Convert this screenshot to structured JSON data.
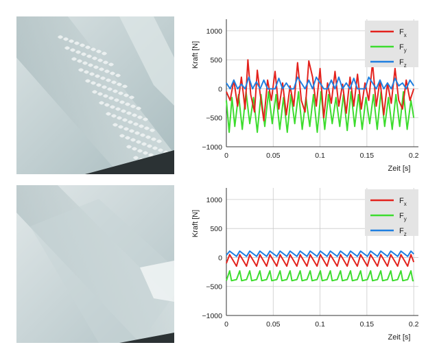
{
  "photos": [
    {
      "alt": "",
      "colors": {
        "bg": "#bccbce",
        "light": "#dfe7e8",
        "dark": "#2b3234",
        "wave": "#eef3f3"
      }
    },
    {
      "alt": "",
      "colors": {
        "bg": "#c3d0d2",
        "light": "#e3e9ea",
        "dark": "#2b3234",
        "wave": "#edf2f2"
      }
    }
  ],
  "legend": [
    {
      "key": "fx",
      "base": "F",
      "sub": "x",
      "color": "#e3211c"
    },
    {
      "key": "fy",
      "base": "F",
      "sub": "y",
      "color": "#3ddc2e"
    },
    {
      "key": "fz",
      "base": "F",
      "sub": "z",
      "color": "#1f7fe0"
    }
  ],
  "chart_data": [
    {
      "type": "line",
      "xlabel": "Zeit [s]",
      "ylabel": "Kraft [N]",
      "xlim": [
        0,
        0.205
      ],
      "ylim": [
        -1000,
        1200
      ],
      "xticks": [
        0,
        0.05,
        0.1,
        0.15,
        0.2
      ],
      "xtick_labels": [
        "0",
        "0.05",
        "0.1",
        "0.15",
        "0.2"
      ],
      "yticks": [
        -1000,
        -500,
        0,
        500,
        1000
      ],
      "ytick_labels": [
        "−1000",
        "−500",
        "0",
        "500",
        "1000"
      ],
      "grid": true,
      "legend_position": "top-right",
      "series": [
        {
          "name": "F_x",
          "color": "#e3211c",
          "x": [
            0,
            0.004,
            0.008,
            0.012,
            0.016,
            0.02,
            0.023,
            0.026,
            0.03,
            0.033,
            0.036,
            0.04,
            0.044,
            0.048,
            0.052,
            0.056,
            0.06,
            0.064,
            0.068,
            0.072,
            0.076,
            0.08,
            0.084,
            0.088,
            0.092,
            0.096,
            0.1,
            0.104,
            0.108,
            0.112,
            0.116,
            0.12,
            0.124,
            0.128,
            0.132,
            0.136,
            0.14,
            0.144,
            0.148,
            0.152,
            0.156,
            0.16,
            0.164,
            0.168,
            0.172,
            0.176,
            0.18,
            0.184,
            0.188,
            0.192,
            0.196,
            0.2
          ],
          "y": [
            -50,
            -200,
            150,
            -300,
            200,
            -350,
            500,
            -100,
            -400,
            320,
            -80,
            -550,
            150,
            -200,
            300,
            -350,
            100,
            -450,
            50,
            -300,
            450,
            -200,
            -400,
            480,
            200,
            -300,
            350,
            -500,
            100,
            -250,
            300,
            -300,
            80,
            -420,
            200,
            -300,
            250,
            -350,
            100,
            -200,
            450,
            -300,
            150,
            -450,
            100,
            -250,
            350,
            -200,
            -350,
            150,
            -200,
            0
          ]
        },
        {
          "name": "F_y",
          "color": "#3ddc2e",
          "x": [
            0,
            0.003,
            0.006,
            0.009,
            0.013,
            0.017,
            0.021,
            0.025,
            0.029,
            0.033,
            0.037,
            0.041,
            0.045,
            0.049,
            0.053,
            0.057,
            0.061,
            0.065,
            0.069,
            0.073,
            0.077,
            0.081,
            0.085,
            0.089,
            0.093,
            0.097,
            0.101,
            0.105,
            0.109,
            0.113,
            0.117,
            0.121,
            0.125,
            0.129,
            0.133,
            0.137,
            0.141,
            0.145,
            0.149,
            0.153,
            0.157,
            0.161,
            0.165,
            0.169,
            0.173,
            0.177,
            0.181,
            0.185,
            0.189,
            0.193,
            0.197,
            0.2
          ],
          "y": [
            -200,
            -750,
            -150,
            -650,
            -100,
            -700,
            -50,
            -600,
            -150,
            -750,
            -100,
            -650,
            -50,
            -600,
            -100,
            -700,
            -150,
            -750,
            -100,
            -600,
            -50,
            -700,
            -150,
            -650,
            -100,
            -750,
            -50,
            -700,
            -100,
            -600,
            -150,
            -650,
            -100,
            -720,
            -50,
            -650,
            -100,
            -700,
            -150,
            -600,
            -100,
            -700,
            -50,
            -650,
            -150,
            -700,
            -100,
            -650,
            -50,
            -700,
            -200,
            -500
          ]
        },
        {
          "name": "F_z",
          "color": "#1f7fe0",
          "x": [
            0,
            0.004,
            0.008,
            0.012,
            0.016,
            0.02,
            0.024,
            0.028,
            0.032,
            0.036,
            0.04,
            0.044,
            0.048,
            0.052,
            0.056,
            0.06,
            0.064,
            0.068,
            0.072,
            0.076,
            0.08,
            0.084,
            0.088,
            0.092,
            0.096,
            0.1,
            0.104,
            0.108,
            0.112,
            0.116,
            0.12,
            0.124,
            0.128,
            0.132,
            0.136,
            0.14,
            0.144,
            0.148,
            0.152,
            0.156,
            0.16,
            0.164,
            0.168,
            0.172,
            0.176,
            0.18,
            0.184,
            0.188,
            0.192,
            0.196,
            0.2
          ],
          "y": [
            100,
            0,
            150,
            0,
            80,
            0,
            200,
            0,
            120,
            0,
            150,
            0,
            0,
            0,
            180,
            0,
            100,
            0,
            0,
            200,
            100,
            0,
            150,
            0,
            200,
            100,
            0,
            0,
            150,
            0,
            200,
            0,
            100,
            0,
            180,
            0,
            0,
            0,
            200,
            100,
            0,
            150,
            0,
            100,
            0,
            180,
            50,
            100,
            0,
            150,
            50
          ]
        }
      ]
    },
    {
      "type": "line",
      "xlabel": "Zeit [s]",
      "ylabel": "Kraft [N]",
      "xlim": [
        0,
        0.205
      ],
      "ylim": [
        -1000,
        1200
      ],
      "xticks": [
        0,
        0.05,
        0.1,
        0.15,
        0.2
      ],
      "xtick_labels": [
        "0",
        "0.05",
        "0.1",
        "0.15",
        "0.2"
      ],
      "yticks": [
        -1000,
        -500,
        0,
        500,
        1000
      ],
      "ytick_labels": [
        "−1000",
        "−500",
        "0",
        "500",
        "1000"
      ],
      "grid": true,
      "legend_position": "top-right",
      "series": [
        {
          "name": "F_x",
          "color": "#e3211c",
          "x": [
            0,
            0.0035,
            0.0108,
            0.0143,
            0.0215,
            0.025,
            0.0323,
            0.0358,
            0.043,
            0.0465,
            0.0538,
            0.0573,
            0.0645,
            0.068,
            0.0753,
            0.0788,
            0.086,
            0.0895,
            0.0968,
            0.1003,
            0.1075,
            0.111,
            0.1183,
            0.1218,
            0.129,
            0.1325,
            0.1398,
            0.1433,
            0.1505,
            0.154,
            0.1613,
            0.1648,
            0.172,
            0.1755,
            0.1828,
            0.1863,
            0.1935,
            0.197,
            0.2
          ],
          "y": [
            -100,
            50,
            -150,
            50,
            -150,
            50,
            -150,
            50,
            -150,
            50,
            -150,
            50,
            -150,
            50,
            -150,
            50,
            -150,
            50,
            -150,
            50,
            -150,
            50,
            -150,
            50,
            -150,
            50,
            -150,
            50,
            -150,
            50,
            -150,
            50,
            -150,
            50,
            -150,
            50,
            -150,
            50,
            -80
          ]
        },
        {
          "name": "F_y",
          "color": "#3ddc2e",
          "x": [
            0,
            0.0035,
            0.0055,
            0.0108,
            0.0143,
            0.0163,
            0.0215,
            0.025,
            0.027,
            0.0323,
            0.0358,
            0.0378,
            0.043,
            0.0465,
            0.0485,
            0.0538,
            0.0573,
            0.0593,
            0.0645,
            0.068,
            0.07,
            0.0753,
            0.0788,
            0.0808,
            0.086,
            0.0895,
            0.0915,
            0.0968,
            0.1003,
            0.1023,
            0.1075,
            0.111,
            0.113,
            0.1183,
            0.1218,
            0.1238,
            0.129,
            0.1325,
            0.1345,
            0.1398,
            0.1433,
            0.1453,
            0.1505,
            0.154,
            0.156,
            0.1613,
            0.1648,
            0.1668,
            0.172,
            0.1755,
            0.1775,
            0.1828,
            0.1863,
            0.1883,
            0.1935,
            0.197,
            0.199,
            0.2
          ],
          "y": [
            -400,
            -230,
            -400,
            -380,
            -230,
            -400,
            -380,
            -230,
            -400,
            -380,
            -230,
            -400,
            -380,
            -230,
            -400,
            -380,
            -230,
            -400,
            -380,
            -230,
            -400,
            -380,
            -230,
            -400,
            -380,
            -230,
            -400,
            -380,
            -230,
            -400,
            -380,
            -230,
            -400,
            -380,
            -230,
            -400,
            -380,
            -230,
            -400,
            -380,
            -230,
            -400,
            -380,
            -230,
            -400,
            -380,
            -230,
            -400,
            -380,
            -230,
            -400,
            -380,
            -230,
            -400,
            -380,
            -230,
            -400,
            -400
          ]
        },
        {
          "name": "F_z",
          "color": "#1f7fe0",
          "x": [
            0,
            0.0035,
            0.0108,
            0.0143,
            0.0215,
            0.025,
            0.0323,
            0.0358,
            0.043,
            0.0465,
            0.0538,
            0.0573,
            0.0645,
            0.068,
            0.0753,
            0.0788,
            0.086,
            0.0895,
            0.0968,
            0.1003,
            0.1075,
            0.111,
            0.1183,
            0.1218,
            0.129,
            0.1325,
            0.1398,
            0.1433,
            0.1505,
            0.154,
            0.1613,
            0.1648,
            0.172,
            0.1755,
            0.1828,
            0.1863,
            0.1935,
            0.197,
            0.2
          ],
          "y": [
            40,
            110,
            20,
            110,
            20,
            110,
            20,
            110,
            20,
            110,
            20,
            110,
            20,
            110,
            20,
            110,
            20,
            110,
            20,
            110,
            20,
            110,
            20,
            110,
            20,
            110,
            20,
            110,
            20,
            110,
            20,
            110,
            20,
            110,
            20,
            110,
            20,
            110,
            60
          ]
        }
      ]
    }
  ]
}
